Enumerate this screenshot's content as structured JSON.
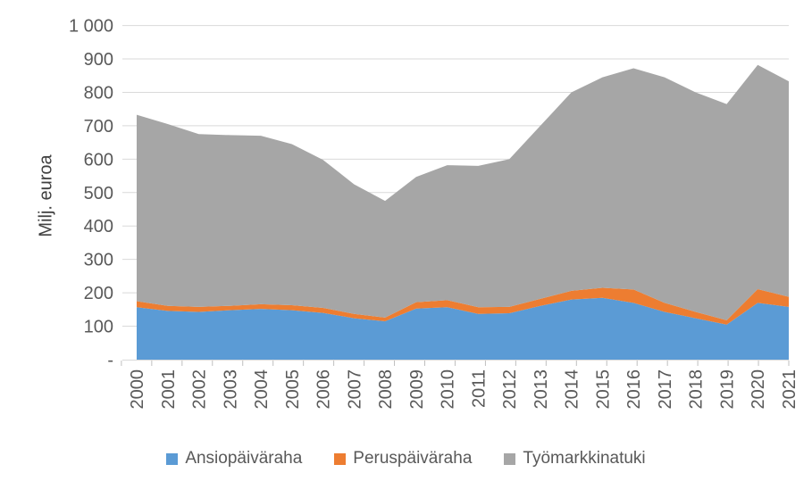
{
  "chart_data": {
    "type": "area",
    "stacked": true,
    "title": "",
    "xlabel": "",
    "ylabel": "Milj. euroa",
    "ylim": [
      0,
      1000
    ],
    "ytick_step": 100,
    "ytick_labels": [
      "-",
      "100",
      "200",
      "300",
      "400",
      "500",
      "600",
      "700",
      "800",
      "900",
      "1 000"
    ],
    "grid": true,
    "legend_position": "bottom",
    "categories": [
      "2000",
      "2001",
      "2002",
      "2003",
      "2004",
      "2005",
      "2006",
      "2007",
      "2008",
      "2009",
      "2010",
      "2011",
      "2012",
      "2013",
      "2014",
      "2015",
      "2016",
      "2017",
      "2018",
      "2019",
      "2020",
      "2021"
    ],
    "series": [
      {
        "name": "Ansiopäiväraha",
        "color": "#5B9BD5",
        "values": [
          157,
          146,
          143,
          148,
          152,
          148,
          140,
          124,
          115,
          153,
          157,
          137,
          139,
          161,
          180,
          185,
          170,
          143,
          124,
          105,
          170,
          158
        ]
      },
      {
        "name": "Peruspäiväraha",
        "color": "#ED7D31",
        "values": [
          18,
          15,
          15,
          13,
          14,
          15,
          15,
          13,
          11,
          19,
          21,
          20,
          19,
          21,
          26,
          30,
          40,
          27,
          19,
          13,
          41,
          30
        ]
      },
      {
        "name": "Työmarkkinatuki",
        "color": "#A6A6A6",
        "values": [
          558,
          544,
          517,
          511,
          504,
          482,
          443,
          388,
          349,
          375,
          404,
          423,
          442,
          518,
          594,
          630,
          662,
          675,
          657,
          647,
          671,
          645
        ]
      }
    ],
    "colors": {
      "gridline": "#D9D9D9",
      "axis_line": "#D9D9D9",
      "tick": "#BFBFBF",
      "axis_text": "#595959"
    }
  }
}
